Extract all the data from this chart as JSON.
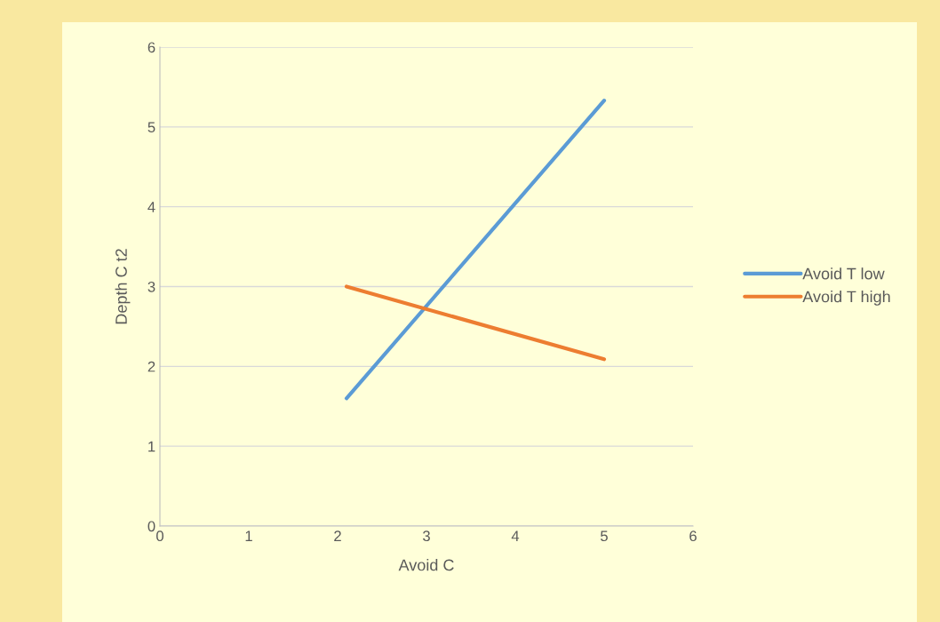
{
  "chart_data": {
    "type": "line",
    "xlabel": "Avoid C",
    "ylabel": "Depth C t2",
    "x": [
      2.1,
      5.0
    ],
    "series": [
      {
        "name": "Avoid T low",
        "color": "#5b9bd5",
        "values": [
          1.6,
          5.33
        ]
      },
      {
        "name": "Avoid T high",
        "color": "#ed7d31",
        "values": [
          3.0,
          2.09
        ]
      }
    ],
    "xlim": [
      0,
      6
    ],
    "xticks": [
      0,
      1,
      2,
      3,
      4,
      5,
      6
    ],
    "ylim": [
      0,
      6
    ],
    "yticks": [
      0,
      1,
      2,
      3,
      4,
      5,
      6
    ],
    "grid": "y",
    "legend": "right",
    "marker": "none",
    "line_style": "solid"
  }
}
